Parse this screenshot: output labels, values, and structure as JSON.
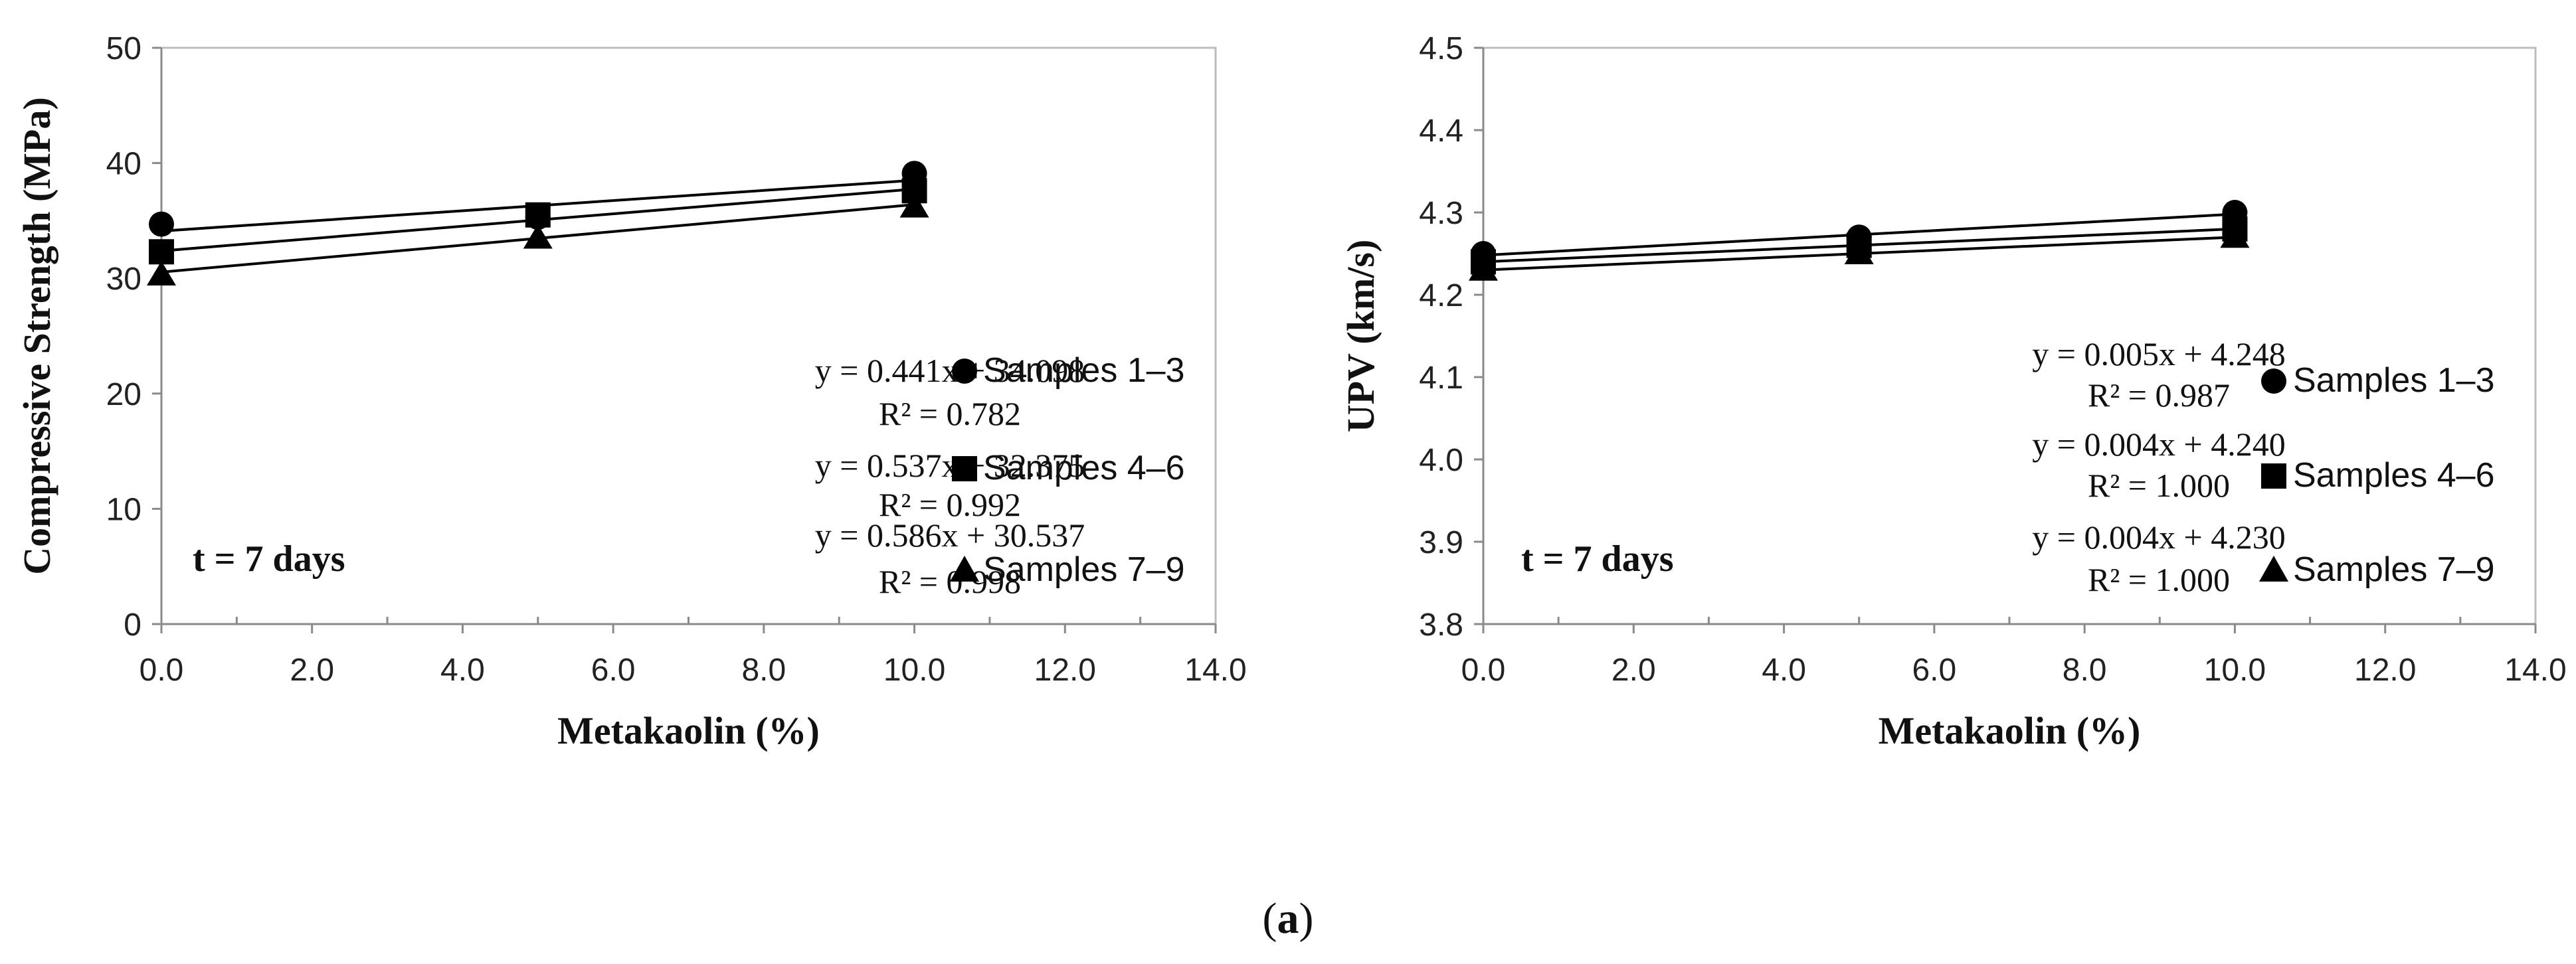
{
  "caption": {
    "open": "(",
    "letter": "a",
    "close": ")"
  },
  "chart_data": [
    {
      "type": "scatter",
      "title": "",
      "xlabel": "Metakaolin (%)",
      "ylabel": "Compressive Strength (MPa)",
      "xlim": [
        0,
        14
      ],
      "ylim": [
        0,
        50
      ],
      "xticks": [
        "0.0",
        "2.0",
        "4.0",
        "6.0",
        "8.0",
        "10.0",
        "12.0",
        "14.0"
      ],
      "yticks": [
        "0",
        "10",
        "20",
        "30",
        "40",
        "50"
      ],
      "grid": false,
      "time_label": "t = 7 days",
      "series": [
        {
          "name": "Samples 1–3",
          "marker": "circle",
          "x": [
            0,
            5,
            10
          ],
          "y": [
            34.7,
            35.3,
            39.1
          ],
          "trend": {
            "slope": 0.441,
            "intercept": 34.098,
            "equation": "y = 0.441x + 34.098",
            "r2": "R² = 0.782"
          }
        },
        {
          "name": "Samples 4–6",
          "marker": "square",
          "x": [
            0,
            5,
            10
          ],
          "y": [
            32.3,
            35.5,
            37.6
          ],
          "trend": {
            "slope": 0.537,
            "intercept": 32.375,
            "equation": "y = 0.537x + 32.375",
            "r2": "R² = 0.992"
          }
        },
        {
          "name": "Samples 7–9",
          "marker": "triangle",
          "x": [
            0,
            5,
            10
          ],
          "y": [
            30.3,
            33.5,
            36.2
          ],
          "trend": {
            "slope": 0.586,
            "intercept": 30.537,
            "equation": "y = 0.586x + 30.537",
            "r2": "R² = 0.998"
          }
        }
      ]
    },
    {
      "type": "scatter",
      "title": "",
      "xlabel": "Metakaolin (%)",
      "ylabel": "UPV (km/s)",
      "xlim": [
        0,
        14
      ],
      "ylim": [
        3.8,
        4.5
      ],
      "xticks": [
        "0.0",
        "2.0",
        "4.0",
        "6.0",
        "8.0",
        "10.0",
        "12.0",
        "14.0"
      ],
      "yticks": [
        "3.8",
        "3.9",
        "4.0",
        "4.1",
        "4.2",
        "4.3",
        "4.4",
        "4.5"
      ],
      "grid": false,
      "time_label": "t = 7 days",
      "series": [
        {
          "name": "Samples 1–3",
          "marker": "circle",
          "x": [
            0,
            5,
            10
          ],
          "y": [
            4.25,
            4.27,
            4.3
          ],
          "trend": {
            "slope": 0.005,
            "intercept": 4.248,
            "equation": "y = 0.005x + 4.248",
            "r2": "R² = 0.987"
          }
        },
        {
          "name": "Samples 4–6",
          "marker": "square",
          "x": [
            0,
            5,
            10
          ],
          "y": [
            4.24,
            4.26,
            4.28
          ],
          "trend": {
            "slope": 0.004,
            "intercept": 4.24,
            "equation": "y = 0.004x + 4.240",
            "r2": "R² = 1.000"
          }
        },
        {
          "name": "Samples 7–9",
          "marker": "triangle",
          "x": [
            0,
            5,
            10
          ],
          "y": [
            4.23,
            4.25,
            4.27
          ],
          "trend": {
            "slope": 0.004,
            "intercept": 4.23,
            "equation": "y = 0.004x + 4.230",
            "r2": "R² = 1.000"
          }
        }
      ]
    }
  ]
}
